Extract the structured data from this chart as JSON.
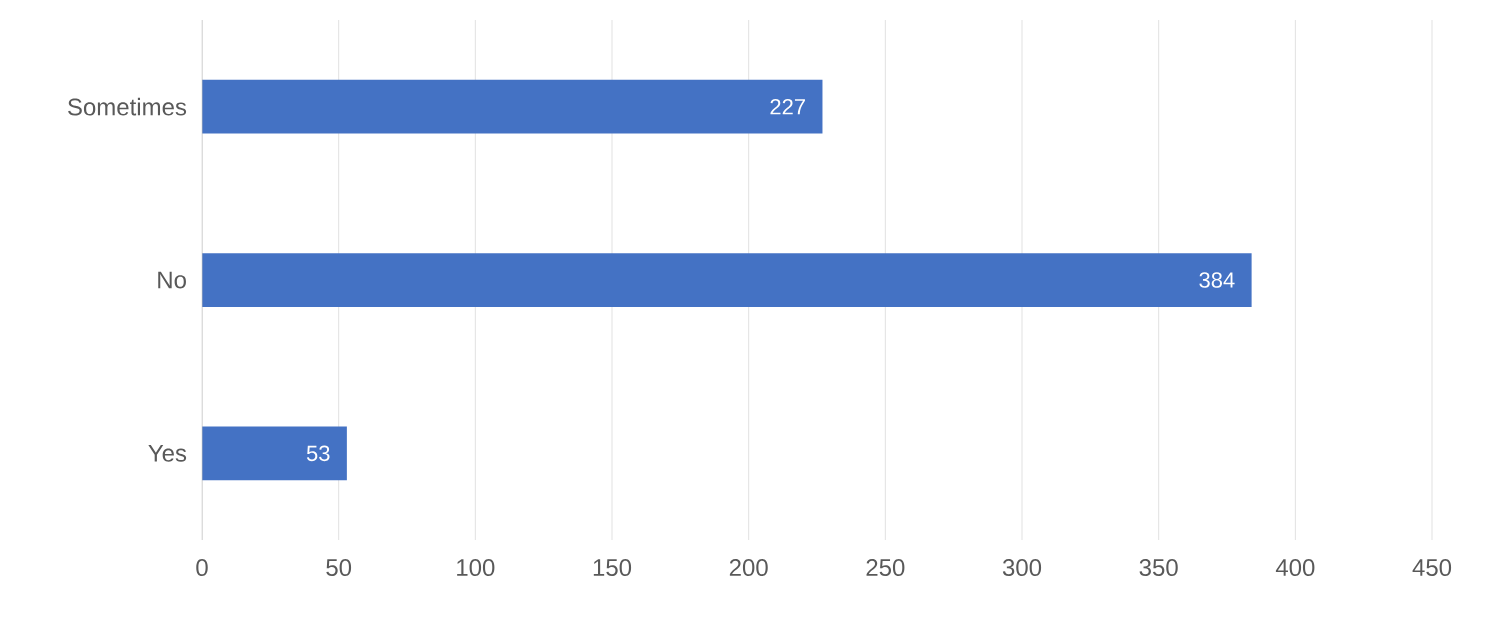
{
  "chart_data": {
    "type": "bar",
    "orientation": "horizontal",
    "categories": [
      "Sometimes",
      "No",
      "Yes"
    ],
    "values": [
      227,
      384,
      53
    ],
    "color": "#4472c4",
    "xlim": [
      0,
      450
    ],
    "xticks": [
      0,
      50,
      100,
      150,
      200,
      250,
      300,
      350,
      400,
      450
    ],
    "grid": "x",
    "data_labels": true
  }
}
